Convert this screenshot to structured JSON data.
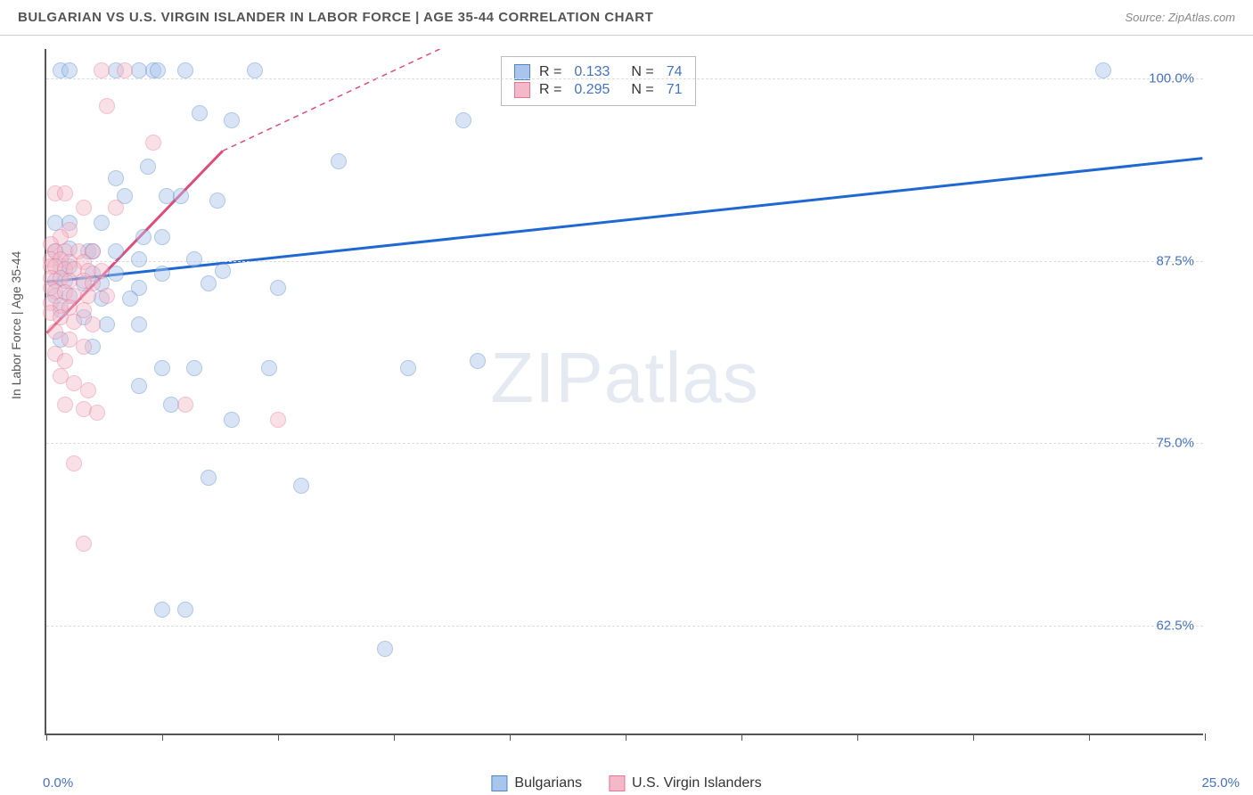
{
  "chart": {
    "type": "scatter",
    "title": "BULGARIAN VS U.S. VIRGIN ISLANDER IN LABOR FORCE | AGE 35-44 CORRELATION CHART",
    "source": "Source: ZipAtlas.com",
    "y_axis_label": "In Labor Force | Age 35-44",
    "watermark": "ZIPatlas",
    "background_color": "#ffffff",
    "grid_color": "#dddddd",
    "axis_color": "#555555",
    "label_color": "#4472c4",
    "text_color": "#555555",
    "xlim": [
      0,
      25
    ],
    "ylim": [
      55,
      102
    ],
    "x_ticks": [
      0,
      2.5,
      5,
      7.5,
      10,
      12.5,
      15,
      17.5,
      20,
      22.5,
      25
    ],
    "x_tick_labels_shown": {
      "0": "0.0%",
      "25": "25.0%"
    },
    "y_gridlines": [
      62.5,
      75,
      87.5,
      100
    ],
    "y_tick_labels": {
      "62.5": "62.5%",
      "75": "75.0%",
      "87.5": "87.5%",
      "100": "100.0%"
    },
    "marker_radius": 9,
    "marker_opacity": 0.45,
    "series": [
      {
        "name": "Bulgarians",
        "color_fill": "#a9c5ed",
        "color_stroke": "#4f86c8",
        "R": "0.133",
        "N": "74",
        "regression": {
          "x1": 0,
          "y1": 86.0,
          "x2": 25,
          "y2": 94.5,
          "color": "#1f68d1",
          "width": 3,
          "dash_after_x": 25
        },
        "points": [
          [
            0.3,
            100.4
          ],
          [
            0.5,
            100.4
          ],
          [
            1.5,
            100.4
          ],
          [
            2.0,
            100.4
          ],
          [
            2.3,
            100.4
          ],
          [
            2.4,
            100.4
          ],
          [
            3.0,
            100.4
          ],
          [
            4.5,
            100.4
          ],
          [
            22.8,
            100.4
          ],
          [
            3.3,
            97.5
          ],
          [
            4.0,
            97.0
          ],
          [
            9.0,
            97.0
          ],
          [
            6.3,
            94.2
          ],
          [
            2.2,
            93.8
          ],
          [
            1.5,
            93.0
          ],
          [
            1.7,
            91.8
          ],
          [
            2.6,
            91.8
          ],
          [
            2.9,
            91.8
          ],
          [
            3.7,
            91.5
          ],
          [
            0.2,
            90.0
          ],
          [
            0.5,
            90.0
          ],
          [
            1.2,
            90.0
          ],
          [
            2.1,
            89.0
          ],
          [
            2.5,
            89.0
          ],
          [
            0.2,
            88.0
          ],
          [
            0.5,
            88.2
          ],
          [
            0.9,
            88.0
          ],
          [
            1.0,
            88.0
          ],
          [
            1.5,
            88.0
          ],
          [
            2.0,
            87.5
          ],
          [
            3.2,
            87.5
          ],
          [
            0.3,
            87.0
          ],
          [
            0.5,
            87.0
          ],
          [
            1.0,
            86.5
          ],
          [
            1.5,
            86.5
          ],
          [
            2.5,
            86.5
          ],
          [
            3.8,
            86.7
          ],
          [
            0.2,
            86.0
          ],
          [
            0.4,
            86.0
          ],
          [
            0.8,
            85.8
          ],
          [
            1.2,
            85.8
          ],
          [
            2.0,
            85.5
          ],
          [
            0.2,
            85.0
          ],
          [
            0.5,
            85.0
          ],
          [
            1.2,
            84.8
          ],
          [
            1.8,
            84.8
          ],
          [
            3.5,
            85.8
          ],
          [
            5.0,
            85.5
          ],
          [
            0.3,
            84.0
          ],
          [
            0.8,
            83.5
          ],
          [
            1.3,
            83.0
          ],
          [
            2.0,
            83.0
          ],
          [
            0.3,
            82.0
          ],
          [
            1.0,
            81.5
          ],
          [
            2.5,
            80.0
          ],
          [
            3.2,
            80.0
          ],
          [
            4.8,
            80.0
          ],
          [
            7.8,
            80.0
          ],
          [
            9.3,
            80.5
          ],
          [
            2.0,
            78.8
          ],
          [
            2.7,
            77.5
          ],
          [
            4.0,
            76.5
          ],
          [
            3.5,
            72.5
          ],
          [
            5.5,
            72.0
          ],
          [
            2.5,
            63.5
          ],
          [
            3.0,
            63.5
          ],
          [
            7.3,
            60.8
          ]
        ]
      },
      {
        "name": "U.S. Virgin Islanders",
        "color_fill": "#f3b9c8",
        "color_stroke": "#e77596",
        "R": "0.295",
        "N": "71",
        "regression": {
          "x1": 0,
          "y1": 82.5,
          "x2": 3.8,
          "y2": 95.0,
          "color": "#e14b7a",
          "width": 3,
          "dash_after_x": 3.8,
          "dash_x2": 8.5,
          "dash_y2": 110
        },
        "points": [
          [
            1.2,
            100.4
          ],
          [
            1.7,
            100.4
          ],
          [
            1.3,
            98.0
          ],
          [
            2.3,
            95.5
          ],
          [
            0.2,
            92.0
          ],
          [
            0.4,
            92.0
          ],
          [
            0.8,
            91.0
          ],
          [
            1.5,
            91.0
          ],
          [
            0.5,
            89.5
          ],
          [
            0.3,
            89.0
          ],
          [
            0.1,
            88.5
          ],
          [
            0.2,
            88.0
          ],
          [
            0.4,
            88.0
          ],
          [
            0.7,
            88.0
          ],
          [
            1.0,
            88.0
          ],
          [
            0.1,
            87.5
          ],
          [
            0.3,
            87.5
          ],
          [
            0.5,
            87.3
          ],
          [
            0.8,
            87.3
          ],
          [
            0.1,
            87.0
          ],
          [
            0.2,
            87.0
          ],
          [
            0.4,
            86.8
          ],
          [
            0.6,
            86.8
          ],
          [
            0.9,
            86.7
          ],
          [
            1.2,
            86.7
          ],
          [
            0.1,
            86.2
          ],
          [
            0.3,
            86.2
          ],
          [
            0.5,
            86.0
          ],
          [
            0.8,
            86.0
          ],
          [
            1.0,
            85.8
          ],
          [
            0.1,
            85.5
          ],
          [
            0.2,
            85.3
          ],
          [
            0.4,
            85.2
          ],
          [
            0.6,
            85.0
          ],
          [
            0.9,
            85.0
          ],
          [
            1.3,
            85.0
          ],
          [
            0.1,
            84.5
          ],
          [
            0.3,
            84.3
          ],
          [
            0.5,
            84.2
          ],
          [
            0.8,
            84.0
          ],
          [
            0.1,
            83.8
          ],
          [
            0.3,
            83.5
          ],
          [
            0.6,
            83.2
          ],
          [
            1.0,
            83.0
          ],
          [
            0.2,
            82.5
          ],
          [
            0.5,
            82.0
          ],
          [
            0.8,
            81.5
          ],
          [
            0.2,
            81.0
          ],
          [
            0.4,
            80.5
          ],
          [
            0.3,
            79.5
          ],
          [
            0.6,
            79.0
          ],
          [
            0.9,
            78.5
          ],
          [
            0.4,
            77.5
          ],
          [
            0.8,
            77.2
          ],
          [
            1.1,
            77.0
          ],
          [
            3.0,
            77.5
          ],
          [
            5.0,
            76.5
          ],
          [
            0.6,
            73.5
          ],
          [
            0.8,
            68.0
          ]
        ]
      }
    ],
    "bottom_legend": [
      {
        "label": "Bulgarians",
        "fill": "#a9c5ed",
        "stroke": "#4f86c8"
      },
      {
        "label": "U.S. Virgin Islanders",
        "fill": "#f3b9c8",
        "stroke": "#e77596"
      }
    ]
  }
}
